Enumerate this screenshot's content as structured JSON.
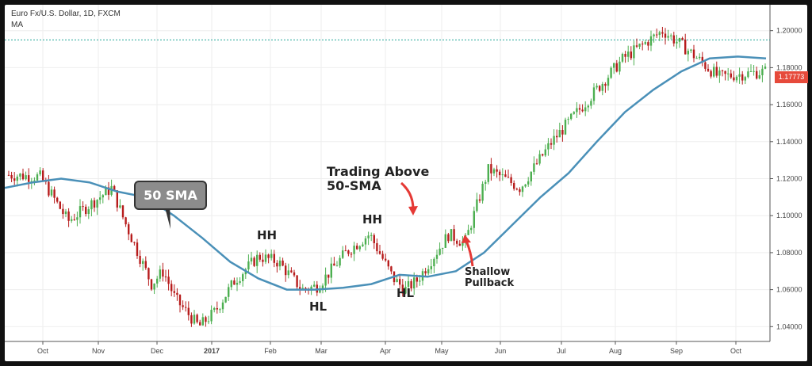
{
  "header": {
    "title": "Euro Fx/U.S. Dollar, 1D, FXCM",
    "indicator": "MA"
  },
  "annotations": {
    "sma_callout": "50 SMA",
    "hh_1": "HH",
    "hh_2": "HH",
    "hl_1": "HL",
    "hl_2": "HL",
    "trading_above_line1": "Trading Above",
    "trading_above_line2": "50-SMA",
    "shallow_line1": "Shallow",
    "shallow_line2": "Pullback"
  },
  "colors": {
    "up_candle": "#4caf50",
    "down_candle": "#b71c1c",
    "ma_line": "#4a90b8",
    "arrow": "#e53935",
    "price_tag": "#e64a3b",
    "dotted_line": "#26a69a",
    "grid": "#eeeeee"
  },
  "chart_data": {
    "type": "line",
    "title": "Euro Fx/U.S. Dollar, 1D, FXCM",
    "y_axis_side": "right",
    "ylim": [
      1.032,
      1.214
    ],
    "y_ticks": [
      "1.20000",
      "1.18000",
      "1.16000",
      "1.14000",
      "1.12000",
      "1.10000",
      "1.08000",
      "1.06000",
      "1.04000"
    ],
    "x_ticks": [
      "Oct",
      "Nov",
      "Dec",
      "2017",
      "Feb",
      "Mar",
      "Apr",
      "May",
      "Jun",
      "Jul",
      "Aug",
      "Sep",
      "Oct"
    ],
    "current_price": "1.17773",
    "reference_level": 1.195,
    "grid": true,
    "series": [
      {
        "name": "MA",
        "x": [
          "Sep",
          "Sep",
          "Oct",
          "Oct",
          "Nov",
          "Nov",
          "Dec",
          "Dec",
          "Jan",
          "Jan",
          "Feb",
          "Feb",
          "Mar",
          "Mar",
          "Apr",
          "Apr",
          "May",
          "May",
          "Jun",
          "Jun",
          "Jul",
          "Jul",
          "Aug",
          "Aug",
          "Sep",
          "Sep",
          "Oct",
          "Oct"
        ],
        "values": [
          1.115,
          1.118,
          1.12,
          1.118,
          1.113,
          1.11,
          1.1,
          1.088,
          1.075,
          1.066,
          1.06,
          1.06,
          1.061,
          1.063,
          1.068,
          1.067,
          1.07,
          1.08,
          1.095,
          1.11,
          1.123,
          1.14,
          1.156,
          1.168,
          1.178,
          1.185,
          1.186,
          1.185
        ]
      },
      {
        "name": "EUR/USD",
        "x": [
          "Sep",
          "Oct",
          "Oct",
          "Nov",
          "Nov",
          "Nov",
          "Dec",
          "Dec",
          "Dec",
          "Jan",
          "Jan",
          "Feb",
          "Feb",
          "Mar",
          "Mar",
          "Apr",
          "Apr",
          "Apr",
          "May",
          "May",
          "May",
          "Jun",
          "Jun",
          "Jul",
          "Jul",
          "Aug",
          "Aug",
          "Sep",
          "Sep",
          "Oct",
          "Oct"
        ],
        "values": [
          1.122,
          1.121,
          1.097,
          1.115,
          1.098,
          1.063,
          1.07,
          1.055,
          1.04,
          1.048,
          1.065,
          1.078,
          1.075,
          1.06,
          1.062,
          1.08,
          1.09,
          1.066,
          1.06,
          1.065,
          1.09,
          1.085,
          1.125,
          1.115,
          1.14,
          1.17,
          1.185,
          1.2,
          1.19,
          1.175,
          1.178
        ]
      }
    ]
  }
}
